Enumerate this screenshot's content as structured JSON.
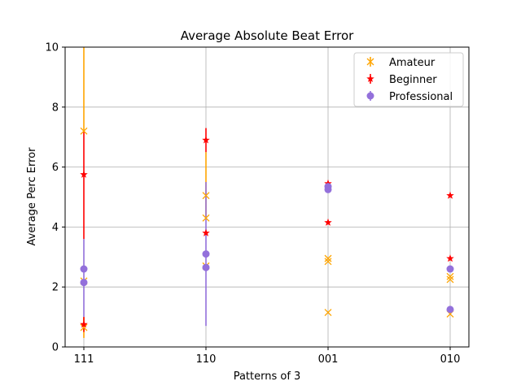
{
  "chart_data": {
    "type": "scatter",
    "title": "Average Absolute Beat Error",
    "xlabel": "Patterns of 3",
    "ylabel": "Average Perc Error",
    "categories": [
      "111",
      "110",
      "001",
      "010"
    ],
    "ylim": [
      0,
      10
    ],
    "yticks": [
      0,
      2,
      4,
      6,
      8,
      10
    ],
    "grid": true,
    "legend_position": "top-right",
    "series": [
      {
        "name": "Amateur",
        "color": "#FFA500",
        "marker": "x",
        "points": [
          {
            "x": "111",
            "y": 7.2,
            "yerr_low": 7.2,
            "yerr_high": 10
          },
          {
            "x": "111",
            "y": 2.2
          },
          {
            "x": "111",
            "y": 0.65,
            "yerr_low": 0.3,
            "yerr_high": 1.0
          },
          {
            "x": "110",
            "y": 5.05,
            "yerr_low": 4.3,
            "yerr_high": 6.5
          },
          {
            "x": "110",
            "y": 4.3
          },
          {
            "x": "110",
            "y": 2.7
          },
          {
            "x": "001",
            "y": 2.95
          },
          {
            "x": "001",
            "y": 2.85
          },
          {
            "x": "001",
            "y": 1.15
          },
          {
            "x": "010",
            "y": 2.35
          },
          {
            "x": "010",
            "y": 2.25
          },
          {
            "x": "010",
            "y": 1.1
          }
        ]
      },
      {
        "name": "Beginner",
        "color": "#FF0000",
        "marker": "star",
        "points": [
          {
            "x": "111",
            "y": 5.75,
            "yerr_low": 3.6,
            "yerr_high": 7.2
          },
          {
            "x": "111",
            "y": 0.75,
            "yerr_low": 0.5,
            "yerr_high": 1.0
          },
          {
            "x": "110",
            "y": 6.9,
            "yerr_low": 6.5,
            "yerr_high": 7.3
          },
          {
            "x": "110",
            "y": 3.8
          },
          {
            "x": "001",
            "y": 5.45
          },
          {
            "x": "001",
            "y": 4.15
          },
          {
            "x": "010",
            "y": 5.05
          },
          {
            "x": "010",
            "y": 2.95
          }
        ]
      },
      {
        "name": "Professional",
        "color": "#9370DB",
        "marker": "circle",
        "points": [
          {
            "x": "111",
            "y": 2.6,
            "yerr_low": 1.0,
            "yerr_high": 3.6
          },
          {
            "x": "111",
            "y": 2.15
          },
          {
            "x": "110",
            "y": 3.1,
            "yerr_low": 0.7,
            "yerr_high": 5.5
          },
          {
            "x": "110",
            "y": 2.65
          },
          {
            "x": "001",
            "y": 5.35
          },
          {
            "x": "001",
            "y": 5.25
          },
          {
            "x": "010",
            "y": 2.6
          },
          {
            "x": "010",
            "y": 1.25
          }
        ]
      }
    ]
  }
}
